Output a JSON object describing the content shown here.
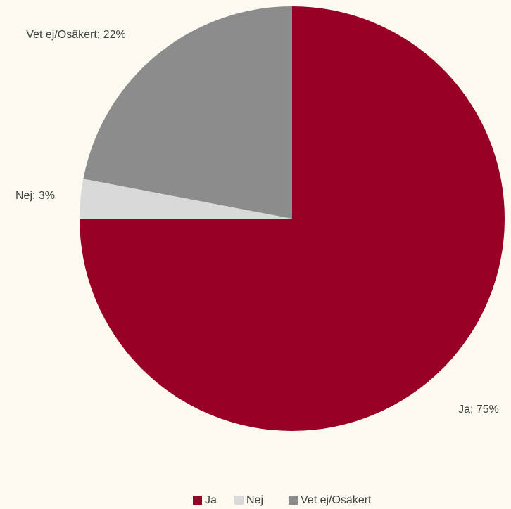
{
  "chart_data": {
    "type": "pie",
    "categories": [
      "Ja",
      "Nej",
      "Vet ej/Osäkert"
    ],
    "values": [
      75,
      3,
      22
    ],
    "value_labels": [
      "Ja; 75%",
      "Nej; 3%",
      "Vet ej/Osäkert; 22%"
    ],
    "colors": [
      "#990026",
      "#d9d9d9",
      "#8c8c8c"
    ],
    "legend": "bottom"
  }
}
